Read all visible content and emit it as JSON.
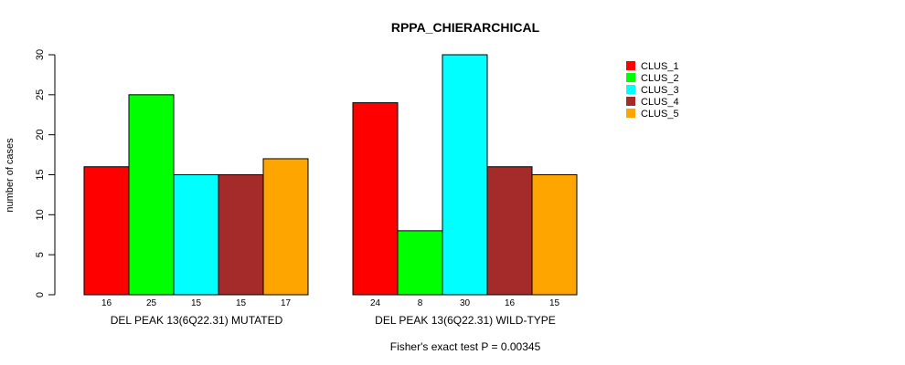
{
  "chart_data": {
    "type": "bar",
    "title": "RPPA_CHIERARCHICAL",
    "ylabel": "number of cases",
    "ylim": [
      0,
      30
    ],
    "yticks": [
      0,
      5,
      10,
      15,
      20,
      25,
      30
    ],
    "groups": [
      {
        "name": "DEL PEAK 13(6Q22.31) MUTATED",
        "values": [
          16,
          25,
          15,
          15,
          17
        ]
      },
      {
        "name": "DEL PEAK 13(6Q22.31) WILD-TYPE",
        "values": [
          24,
          8,
          30,
          16,
          15
        ]
      }
    ],
    "series": [
      {
        "name": "CLUS_1",
        "color": "#ff0000"
      },
      {
        "name": "CLUS_2",
        "color": "#00ff00"
      },
      {
        "name": "CLUS_3",
        "color": "#00ffff"
      },
      {
        "name": "CLUS_4",
        "color": "#a52a2a"
      },
      {
        "name": "CLUS_5",
        "color": "#ffa500"
      }
    ],
    "legend_position": "top-right",
    "footnote": "Fisher's exact test P = 0.00345"
  }
}
